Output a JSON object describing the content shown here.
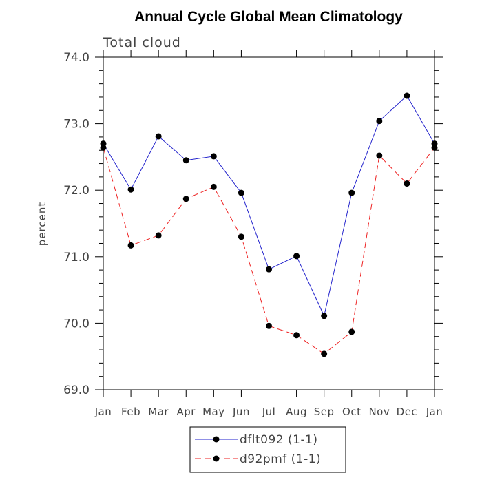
{
  "chart_data": {
    "type": "line",
    "title": "Annual Cycle Global Mean Climatology",
    "subtitle": "Total cloud",
    "xlabel": "",
    "ylabel": "percent",
    "categories": [
      "Jan",
      "Feb",
      "Mar",
      "Apr",
      "May",
      "Jun",
      "Jul",
      "Aug",
      "Sep",
      "Oct",
      "Nov",
      "Dec",
      "Jan"
    ],
    "ylim": [
      69.0,
      74.0
    ],
    "yticks": [
      "69.0",
      "70.0",
      "71.0",
      "72.0",
      "73.0",
      "74.0"
    ],
    "grid": false,
    "legend_position": "bottom-center",
    "series": [
      {
        "name": "dflt092 (1-1)",
        "color": "#2222cc",
        "line_style": "solid",
        "marker": "filled-circle",
        "values": [
          72.7,
          72.01,
          72.81,
          72.45,
          72.51,
          71.96,
          70.81,
          71.01,
          70.11,
          71.96,
          73.04,
          73.42,
          72.7
        ]
      },
      {
        "name": "d92pmf (1-1)",
        "color": "#ee2222",
        "line_style": "dashed",
        "marker": "filled-circle",
        "values": [
          72.64,
          71.17,
          71.32,
          71.87,
          72.05,
          71.3,
          69.96,
          69.82,
          69.54,
          69.87,
          72.52,
          72.1,
          72.64
        ]
      }
    ]
  }
}
